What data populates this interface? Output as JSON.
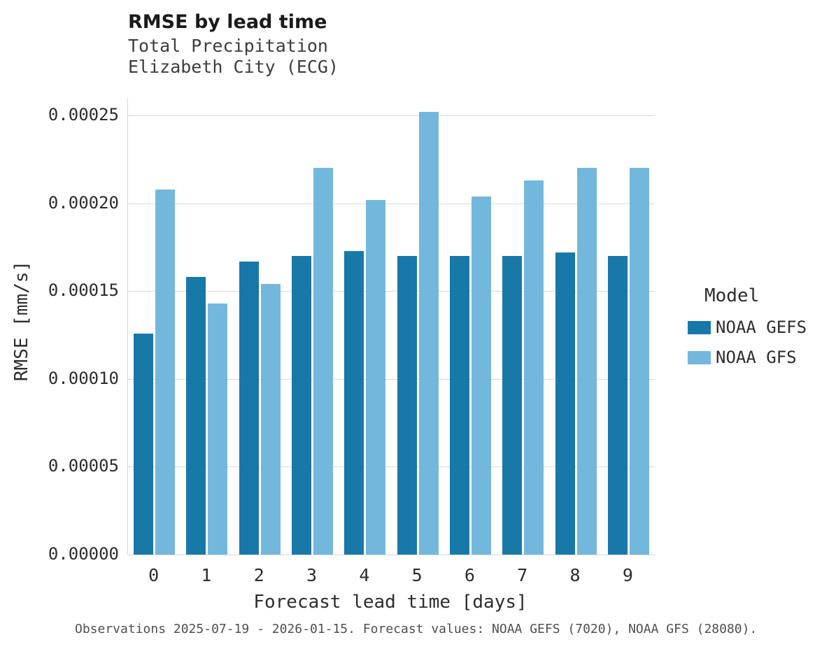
{
  "chart_data": {
    "type": "bar",
    "title": "RMSE by lead time",
    "subtitle_lines": [
      "Total Precipitation",
      "Elizabeth City (ECG)"
    ],
    "xlabel": "Forecast lead time [days]",
    "ylabel": "RMSE [mm/s]",
    "categories": [
      "0",
      "1",
      "2",
      "3",
      "4",
      "5",
      "6",
      "7",
      "8",
      "9"
    ],
    "series": [
      {
        "name": "NOAA GEFS",
        "color": "#1878a8",
        "values": [
          0.000126,
          0.000158,
          0.000167,
          0.00017,
          0.000173,
          0.00017,
          0.00017,
          0.00017,
          0.000172,
          0.00017
        ]
      },
      {
        "name": "NOAA GFS",
        "color": "#74b7dd",
        "values": [
          0.000208,
          0.000143,
          0.000154,
          0.00022,
          0.000202,
          0.000252,
          0.000204,
          0.000213,
          0.00022,
          0.00022
        ]
      }
    ],
    "ylim": [
      0,
      0.00026
    ],
    "yticks": [
      0,
      5e-05,
      0.0001,
      0.00015,
      0.0002,
      0.00025
    ],
    "ytick_labels": [
      "0.00000",
      "0.00005",
      "0.00010",
      "0.00015",
      "0.00020",
      "0.00025"
    ],
    "grid": true,
    "legend_title": "Model",
    "legend_position": "right",
    "caption": "Observations 2025-07-19 - 2026-01-15. Forecast values: NOAA GEFS (7020), NOAA GFS (28080).",
    "colors": {
      "gridline": "#d8d8d8",
      "background": "#ffffff",
      "noaa_gefs": "#1878a8",
      "noaa_gfs": "#74b7dd"
    }
  }
}
